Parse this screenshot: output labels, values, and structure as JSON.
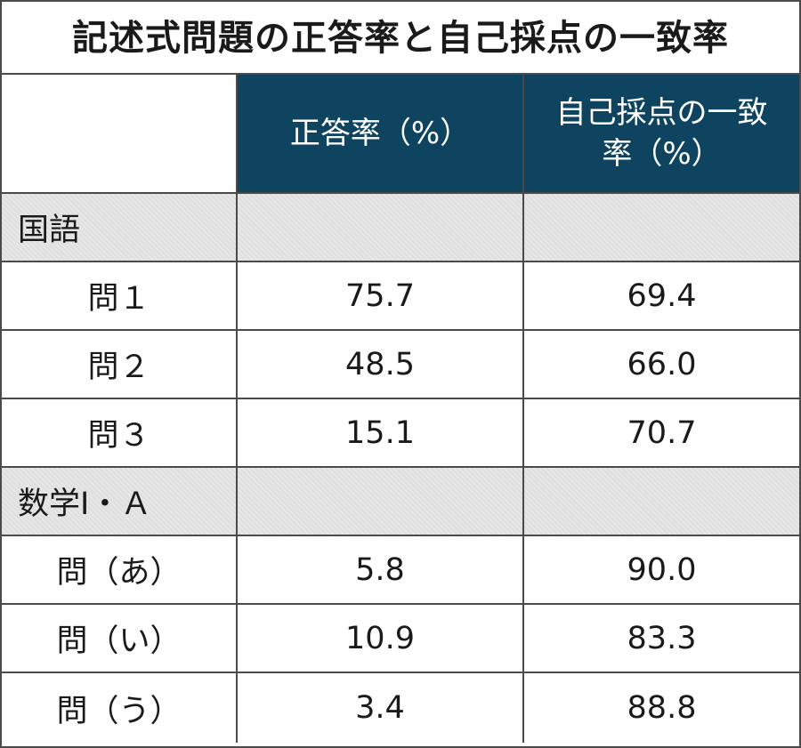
{
  "title": "記述式問題の正答率と自己採点の一致率",
  "chart_data": {
    "type": "table",
    "title": "記述式問題の正答率と自己採点の一致率",
    "columns": [
      "正答率（%）",
      "自己採点の一致率（%）"
    ],
    "sections": [
      {
        "name": "国語",
        "rows": [
          {
            "label": "問１",
            "correct_rate": "75.7",
            "match_rate": "69.4"
          },
          {
            "label": "問２",
            "correct_rate": "48.5",
            "match_rate": "66.0"
          },
          {
            "label": "問３",
            "correct_rate": "15.1",
            "match_rate": "70.7"
          }
        ]
      },
      {
        "name": "数学Ⅰ・Ａ",
        "rows": [
          {
            "label": "問（あ）",
            "correct_rate": "5.8",
            "match_rate": "90.0"
          },
          {
            "label": "問（い）",
            "correct_rate": "10.9",
            "match_rate": "83.3"
          },
          {
            "label": "問（う）",
            "correct_rate": "3.4",
            "match_rate": "88.8"
          }
        ]
      }
    ]
  },
  "colors": {
    "header_bg": "#0e4460",
    "header_text": "#ffffff",
    "section_bg": "#e0e0e0",
    "border": "#4a4a4a"
  }
}
